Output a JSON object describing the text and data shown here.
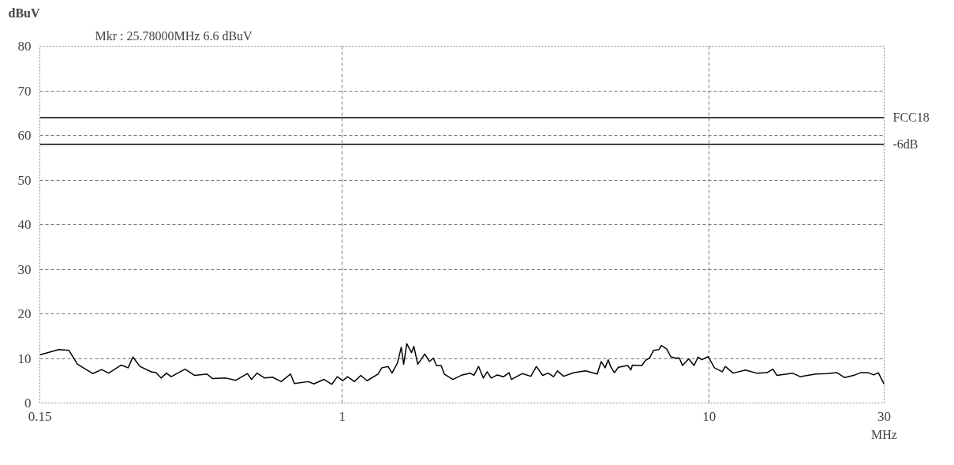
{
  "chart_data": {
    "type": "line",
    "ylabel": "dBuV",
    "xlabel": "MHz",
    "annotations": [
      "Mkr :  25.78000MHz   6.6 dBuV"
    ],
    "log": "x",
    "xlim": [
      0.15,
      30
    ],
    "ylim": [
      0,
      80
    ],
    "xticks": [
      0.15,
      1,
      10,
      30
    ],
    "yticks": [
      0,
      10,
      20,
      30,
      40,
      50,
      60,
      70,
      80
    ],
    "grid": true,
    "ref_lines": [
      {
        "axis": "y",
        "value": 64,
        "label": "FCC18",
        "color": "#000000"
      },
      {
        "axis": "y",
        "value": 58,
        "label": "-6dB",
        "color": "#000000"
      }
    ],
    "series": [
      {
        "color": "#000000",
        "x": [
          0.15,
          0.169,
          0.18,
          0.19,
          0.209,
          0.221,
          0.231,
          0.25,
          0.261,
          0.269,
          0.281,
          0.302,
          0.311,
          0.321,
          0.332,
          0.342,
          0.373,
          0.396,
          0.428,
          0.443,
          0.482,
          0.513,
          0.552,
          0.566,
          0.586,
          0.615,
          0.646,
          0.682,
          0.723,
          0.741,
          0.809,
          0.837,
          0.893,
          0.937,
          0.97,
          1.004,
          1.034,
          1.08,
          1.124,
          1.169,
          1.252,
          1.283,
          1.334,
          1.367,
          1.415,
          1.449,
          1.471,
          1.5,
          1.545,
          1.568,
          1.607,
          1.679,
          1.729,
          1.772,
          1.807,
          1.861,
          1.898,
          2.003,
          2.124,
          2.231,
          2.286,
          2.354,
          2.425,
          2.484,
          2.547,
          2.648,
          2.754,
          2.849,
          2.892,
          3.098,
          3.268,
          3.383,
          3.519,
          3.642,
          3.768,
          3.861,
          4.015,
          4.28,
          4.607,
          4.956,
          5.08,
          5.206,
          5.31,
          5.39,
          5.521,
          5.658,
          6.002,
          6.119,
          6.182,
          6.555,
          6.719,
          6.885,
          7.055,
          7.302,
          7.41,
          7.67,
          7.859,
          8.057,
          8.297,
          8.462,
          8.799,
          9.101,
          9.327,
          9.56,
          9.942,
          10.34,
          10.86,
          11.07,
          11.63,
          12.57,
          13.47,
          14.36,
          14.93,
          15.3,
          16.87,
          17.72,
          19.55,
          20.94,
          22.31,
          23.43,
          24.98,
          25.85,
          27.14,
          28.1,
          28.92,
          30
        ],
        "values": [
          10.8,
          12.0,
          11.8,
          8.7,
          6.6,
          7.5,
          6.7,
          8.5,
          7.9,
          10.3,
          8.2,
          7.0,
          6.8,
          5.6,
          6.7,
          5.9,
          7.6,
          6.2,
          6.5,
          5.5,
          5.6,
          5.1,
          6.6,
          5.3,
          6.7,
          5.6,
          5.8,
          4.8,
          6.5,
          4.4,
          4.8,
          4.3,
          5.3,
          4.2,
          5.9,
          5.0,
          5.9,
          4.8,
          6.2,
          5.0,
          6.5,
          7.9,
          8.2,
          6.7,
          9.0,
          12.5,
          8.7,
          13.3,
          11.3,
          12.7,
          8.7,
          11.0,
          9.3,
          10.1,
          8.4,
          8.4,
          6.5,
          5.3,
          6.3,
          6.7,
          6.2,
          8.2,
          5.6,
          7.0,
          5.6,
          6.3,
          5.9,
          6.8,
          5.3,
          6.6,
          6.0,
          8.2,
          6.2,
          6.7,
          5.9,
          7.2,
          6.0,
          6.8,
          7.2,
          6.5,
          9.3,
          7.9,
          9.7,
          8.2,
          6.8,
          8.0,
          8.4,
          7.4,
          8.5,
          8.4,
          9.6,
          10.1,
          11.8,
          12.0,
          12.9,
          12.1,
          10.4,
          10.1,
          10.1,
          8.4,
          9.9,
          8.4,
          10.3,
          9.7,
          10.4,
          7.9,
          7.0,
          8.2,
          6.7,
          7.4,
          6.7,
          6.8,
          7.6,
          6.2,
          6.7,
          5.9,
          6.5,
          6.6,
          6.8,
          5.7,
          6.3,
          6.8,
          6.8,
          6.3,
          6.8,
          4.2
        ]
      }
    ]
  }
}
